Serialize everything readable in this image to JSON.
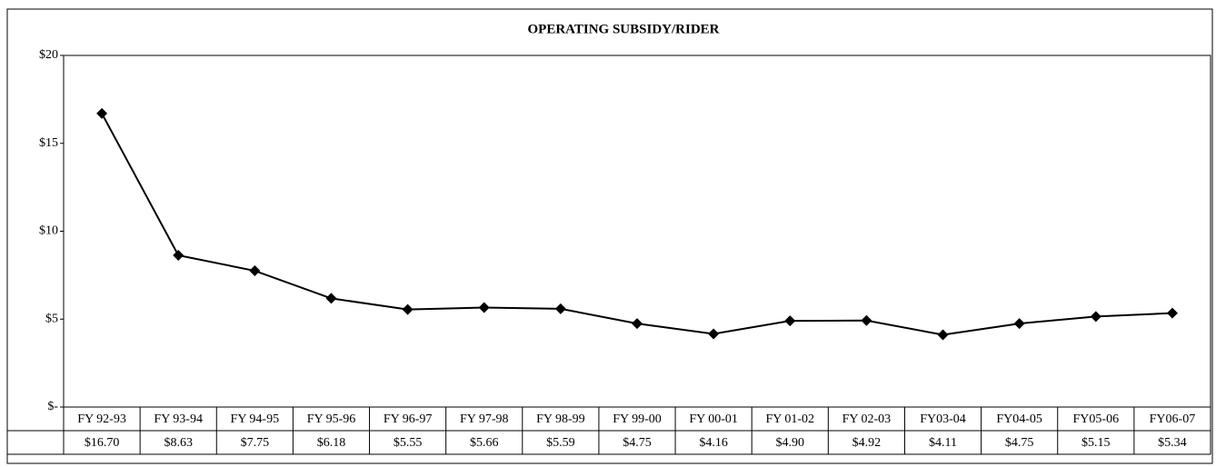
{
  "chart_data": {
    "type": "line",
    "title": "OPERATING SUBSIDY/RIDER",
    "categories": [
      "FY 92-93",
      "FY 93-94",
      "FY 94-95",
      "FY 95-96",
      "FY 96-97",
      "FY 97-98",
      "FY 98-99",
      "FY 99-00",
      "FY 00-01",
      "FY 01-02",
      "FY 02-03",
      "FY03-04",
      "FY04-05",
      "FY05-06",
      "FY06-07"
    ],
    "values": [
      16.7,
      8.63,
      7.75,
      6.18,
      5.55,
      5.66,
      5.59,
      4.75,
      4.16,
      4.9,
      4.92,
      4.11,
      4.75,
      5.15,
      5.34
    ],
    "value_labels": [
      "$16.70",
      "$8.63",
      "$7.75",
      "$6.18",
      "$5.55",
      "$5.66",
      "$5.59",
      "$4.75",
      "$4.16",
      "$4.90",
      "$4.92",
      "$4.11",
      "$4.75",
      "$5.15",
      "$5.34"
    ],
    "color": "#000000",
    "ylim": [
      0,
      20
    ],
    "yticks": [
      {
        "value": 0,
        "label": "$-"
      },
      {
        "value": 5,
        "label": "$5"
      },
      {
        "value": 10,
        "label": "$10"
      },
      {
        "value": 15,
        "label": "$15"
      },
      {
        "value": 20,
        "label": "$20"
      }
    ],
    "grid": false
  }
}
